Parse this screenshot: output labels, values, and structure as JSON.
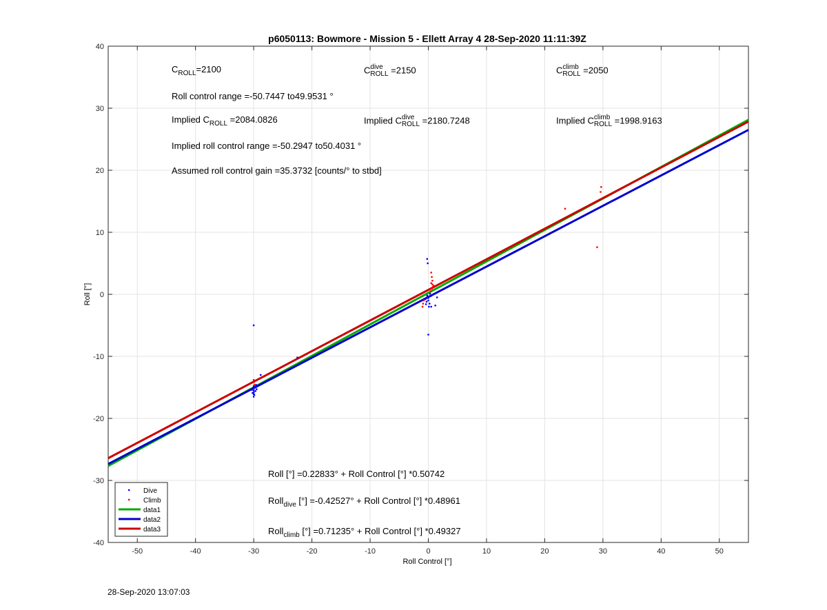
{
  "chart_data": {
    "type": "scatter",
    "title": "p6050113: Bowmore - Mission 5 - Ellett Array 4 28-Sep-2020 11:11:39Z",
    "xlabel": "Roll Control [°]",
    "ylabel": "Roll [°]",
    "xlim": [
      -55,
      55
    ],
    "ylim": [
      -40,
      40
    ],
    "xticks": [
      -50,
      -40,
      -30,
      -20,
      -10,
      0,
      10,
      20,
      30,
      40,
      50
    ],
    "yticks": [
      -40,
      -30,
      -20,
      -10,
      0,
      10,
      20,
      30,
      40
    ],
    "grid": true,
    "legend_position": "bottom-left",
    "series": [
      {
        "name": "Dive",
        "kind": "points",
        "color": "#0000ff",
        "points": [
          [
            -30,
            -5.0
          ],
          [
            -30,
            -14.8
          ],
          [
            -30,
            -15.2
          ],
          [
            -30,
            -15.5
          ],
          [
            -30,
            -15.8
          ],
          [
            -30,
            -16.1
          ],
          [
            -30,
            -16.5
          ],
          [
            -29.8,
            -15.0
          ],
          [
            -29.7,
            -15.6
          ],
          [
            -29.6,
            -14.6
          ],
          [
            -29.5,
            -15.3
          ],
          [
            -30.2,
            -15.9
          ],
          [
            -30.3,
            -15.4
          ],
          [
            -29.9,
            -16.2
          ],
          [
            -28.8,
            -13.0
          ],
          [
            -22.5,
            -10.2
          ],
          [
            -0.2,
            5.7
          ],
          [
            -0.1,
            5.0
          ],
          [
            0,
            -6.5
          ],
          [
            0,
            -0.6
          ],
          [
            -0.3,
            -1.2
          ],
          [
            0.2,
            -1.5
          ],
          [
            0.4,
            -0.3
          ],
          [
            -0.5,
            -0.8
          ],
          [
            0.1,
            -2.0
          ],
          [
            0.5,
            -2.0
          ],
          [
            1.2,
            -1.8
          ],
          [
            1.5,
            -0.5
          ],
          [
            -0.2,
            -0.2
          ],
          [
            0.3,
            0.1
          ],
          [
            -0.4,
            -1.6
          ],
          [
            0.0,
            -1.0
          ]
        ]
      },
      {
        "name": "Climb",
        "kind": "points",
        "color": "#ff0000",
        "points": [
          [
            -30,
            -13.8
          ],
          [
            -30,
            -14.2
          ],
          [
            -29.9,
            -14.6
          ],
          [
            23.5,
            13.8
          ],
          [
            29,
            7.6
          ],
          [
            29.6,
            16.5
          ],
          [
            29.7,
            17.3
          ],
          [
            0.5,
            3.5
          ],
          [
            0.6,
            2.8
          ],
          [
            0.7,
            2.2
          ],
          [
            0.7,
            1.6
          ],
          [
            0.8,
            1.2
          ],
          [
            0.6,
            0.9
          ],
          [
            0.4,
            0.5
          ],
          [
            -0.9,
            -1.5
          ],
          [
            -1.0,
            -2.0
          ],
          [
            -0.8,
            -1.0
          ],
          [
            0.5,
            1.8
          ],
          [
            0.9,
            1.4
          ]
        ]
      },
      {
        "name": "data1",
        "kind": "line",
        "color": "#00aa00",
        "intercept": 0.22833,
        "slope": 0.50742
      },
      {
        "name": "data2",
        "kind": "line",
        "color": "#0000cc",
        "intercept": -0.42527,
        "slope": 0.48961
      },
      {
        "name": "data3",
        "kind": "line",
        "color": "#cc0000",
        "intercept": 0.71235,
        "slope": 0.49327
      }
    ]
  },
  "annotations": {
    "c_roll": "=2100",
    "c_roll_dive": "=2150",
    "c_roll_climb": "=2050",
    "roll_control_range": "Roll control range =-50.7447 to49.9531 °",
    "implied_prefix": "Implied ",
    "implied_c_roll": "=2084.0826",
    "implied_c_roll_dive": "=2180.7248",
    "implied_c_roll_climb": "=1998.9163",
    "implied_range": "Implied roll control range =-50.2947 to50.4031 °",
    "gain": "Assumed roll control gain =35.3732 [counts/° to stbd]",
    "eq_all": "Roll [°] =0.22833° + Roll Control [°] *0.50742",
    "eq_dive_rest": " [°] =-0.42527° + Roll Control [°] *0.48961",
    "eq_climb_rest": " [°] =0.71235° + Roll Control [°] *0.49327",
    "sym_C": "C",
    "sym_ROLL": "ROLL",
    "sym_dive": "dive",
    "sym_climb": "climb",
    "sym_Roll": "Roll"
  },
  "timestamp": "28-Sep-2020 13:07:03"
}
